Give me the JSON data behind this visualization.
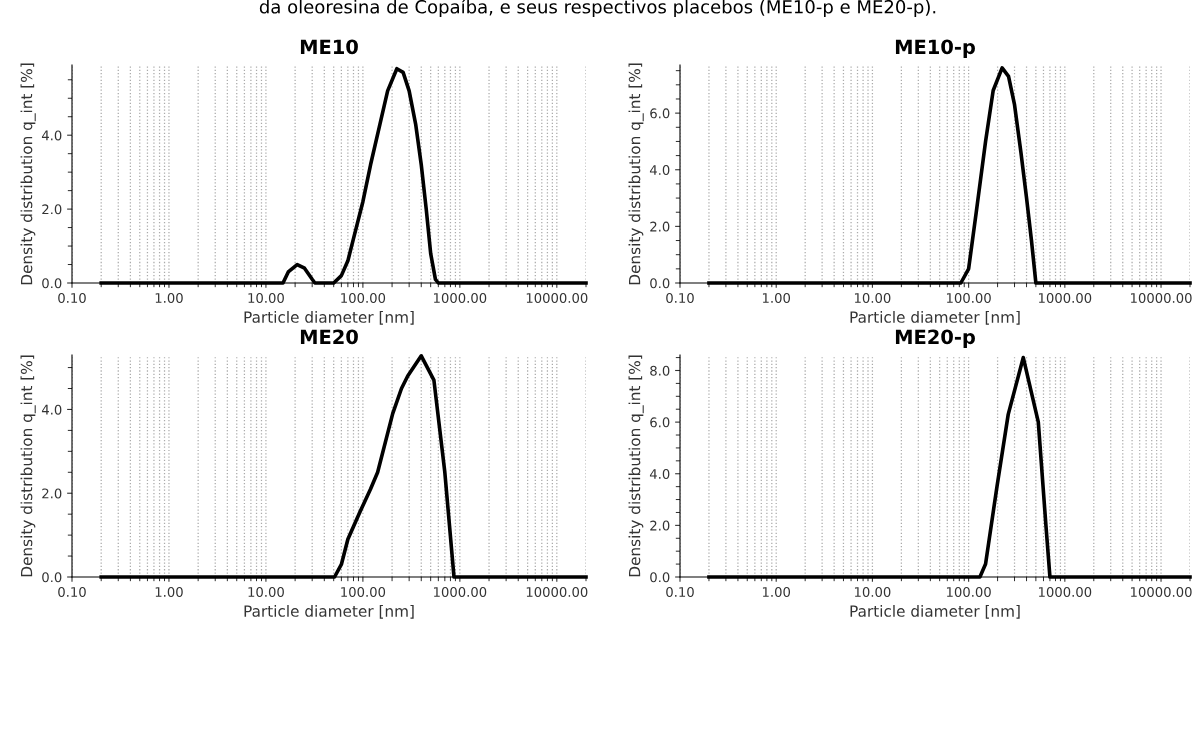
{
  "chart_data": [
    {
      "type": "line",
      "title": "ME10",
      "xlabel": "Particle diameter [nm]",
      "ylabel": "Density distribution q_int [%]",
      "log": "x",
      "grid": "x",
      "marker": "none",
      "line_style": "solid",
      "annotations": [
        "da oleoresina de Copaíba, e seus respectivos placebos (ME10-p e ME20-p)."
      ],
      "xlim": [
        0.1,
        20000
      ],
      "xticks": [
        {
          "value": 0.1,
          "label": "0.10"
        },
        {
          "value": 1,
          "label": "1.00"
        },
        {
          "value": 10,
          "label": "10.00"
        },
        {
          "value": 100,
          "label": "100.00"
        },
        {
          "value": 1000,
          "label": "1000.00"
        },
        {
          "value": 10000,
          "label": "10000.00"
        }
      ],
      "ylim": [
        0,
        5.9
      ],
      "yticks": [
        {
          "value": 0,
          "label": "0.0"
        },
        {
          "value": 2,
          "label": "2.0"
        },
        {
          "value": 4,
          "label": "4.0"
        }
      ],
      "series": [
        {
          "color": "#000000",
          "x": [
            0.2,
            15,
            17,
            21,
            25,
            30,
            32,
            50,
            60,
            70,
            80,
            100,
            120,
            150,
            180,
            224,
            260,
            300,
            350,
            400,
            450,
            500,
            560,
            600,
            20000
          ],
          "values": [
            0,
            0,
            0.3,
            0.5,
            0.4,
            0.1,
            0,
            0,
            0.2,
            0.6,
            1.2,
            2.2,
            3.2,
            4.3,
            5.2,
            5.8,
            5.7,
            5.2,
            4.3,
            3.2,
            2.0,
            0.8,
            0.1,
            0,
            0
          ]
        }
      ]
    },
    {
      "type": "line",
      "title": "ME10-p",
      "xlabel": "Particle diameter [nm]",
      "ylabel": "Density distribution q_int [%]",
      "log": "x",
      "grid": "x",
      "marker": "none",
      "line_style": "solid",
      "xlim": [
        0.1,
        20000
      ],
      "xticks": [
        {
          "value": 0.1,
          "label": "0.10"
        },
        {
          "value": 1,
          "label": "1.00"
        },
        {
          "value": 10,
          "label": "10.00"
        },
        {
          "value": 100,
          "label": "100.00"
        },
        {
          "value": 1000,
          "label": "1000.00"
        },
        {
          "value": 10000,
          "label": "10000.00"
        }
      ],
      "ylim": [
        0,
        7.7
      ],
      "yticks": [
        {
          "value": 0,
          "label": "0.0"
        },
        {
          "value": 2,
          "label": "2.0"
        },
        {
          "value": 4,
          "label": "4.0"
        },
        {
          "value": 6,
          "label": "6.0"
        }
      ],
      "series": [
        {
          "color": "#000000",
          "x": [
            0.2,
            83,
            100,
            120,
            150,
            180,
            223,
            260,
            300,
            350,
            400,
            450,
            500,
            20000
          ],
          "values": [
            0,
            0,
            0.5,
            2.5,
            5.0,
            6.8,
            7.6,
            7.3,
            6.3,
            4.6,
            3.0,
            1.5,
            0,
            0
          ]
        }
      ]
    },
    {
      "type": "line",
      "title": "ME20",
      "xlabel": "Particle diameter [nm]",
      "ylabel": "Density distribution q_int [%]",
      "log": "x",
      "grid": "x",
      "marker": "none",
      "line_style": "solid",
      "xlim": [
        0.1,
        20000
      ],
      "xticks": [
        {
          "value": 0.1,
          "label": "0.10"
        },
        {
          "value": 1,
          "label": "1.00"
        },
        {
          "value": 10,
          "label": "10.00"
        },
        {
          "value": 100,
          "label": "100.00"
        },
        {
          "value": 1000,
          "label": "1000.00"
        },
        {
          "value": 10000,
          "label": "10000.00"
        }
      ],
      "ylim": [
        0,
        5.3
      ],
      "yticks": [
        {
          "value": 0,
          "label": "0.0"
        },
        {
          "value": 2,
          "label": "2.0"
        },
        {
          "value": 4,
          "label": "4.0"
        }
      ],
      "series": [
        {
          "color": "#000000",
          "x": [
            0.2,
            51,
            60,
            70,
            91,
            120,
            142,
            203,
            250,
            290,
            400,
            540,
            700,
            870,
            20000
          ],
          "values": [
            0,
            0,
            0.3,
            0.9,
            1.5,
            2.1,
            2.5,
            3.9,
            4.5,
            4.8,
            5.28,
            4.7,
            2.5,
            0,
            0
          ]
        }
      ]
    },
    {
      "type": "line",
      "title": "ME20-p",
      "xlabel": "Particle diameter [nm]",
      "ylabel": "Density distribution q_int [%]",
      "log": "x",
      "grid": "x",
      "marker": "none",
      "line_style": "solid",
      "xlim": [
        0.1,
        20000
      ],
      "xticks": [
        {
          "value": 0.1,
          "label": "0.10"
        },
        {
          "value": 1,
          "label": "1.00"
        },
        {
          "value": 10,
          "label": "10.00"
        },
        {
          "value": 100,
          "label": "100.00"
        },
        {
          "value": 1000,
          "label": "1000.00"
        },
        {
          "value": 10000,
          "label": "10000.00"
        }
      ],
      "ylim": [
        0,
        8.6
      ],
      "yticks": [
        {
          "value": 0,
          "label": "0.0"
        },
        {
          "value": 2,
          "label": "2.0"
        },
        {
          "value": 4,
          "label": "4.0"
        },
        {
          "value": 6,
          "label": "6.0"
        },
        {
          "value": 8,
          "label": "8.0"
        }
      ],
      "series": [
        {
          "color": "#000000",
          "x": [
            0.2,
            131,
            150,
            197,
            258,
            370,
            530,
            636,
            700,
            20000
          ],
          "values": [
            0,
            0,
            0.5,
            3.5,
            6.3,
            8.5,
            6.0,
            2.0,
            0,
            0
          ]
        }
      ]
    }
  ]
}
